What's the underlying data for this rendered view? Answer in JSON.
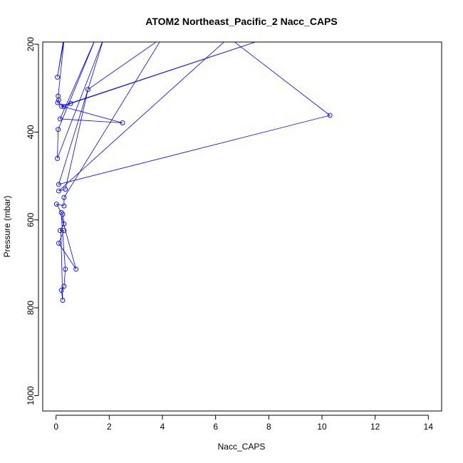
{
  "chart_data": {
    "type": "line",
    "title": "ATOM2 Northeast_Pacific_2 Nacc_CAPS",
    "xlabel": "Nacc_CAPS",
    "ylabel": "Pressure (mbar)",
    "xlim": [
      -0.5,
      14.5
    ],
    "ylim": [
      1035,
      195
    ],
    "y_reversed": true,
    "x_ticks": [
      0,
      2,
      4,
      6,
      8,
      10,
      12,
      14
    ],
    "y_ticks": [
      200,
      400,
      600,
      800,
      1000
    ],
    "grid": false,
    "series": [
      {
        "color": "#0000ff",
        "marker": "open-circle",
        "points": [
          [
            0.05,
            275
          ],
          [
            0.08,
            318
          ],
          [
            0.1,
            327
          ],
          [
            0.06,
            333
          ],
          [
            0.3,
            342
          ],
          [
            0.55,
            335
          ],
          [
            1.2,
            303
          ],
          [
            0.2,
            341
          ],
          [
            2.5,
            379
          ],
          [
            0.15,
            370
          ],
          [
            0.08,
            394
          ],
          [
            10.3,
            362
          ],
          [
            0.05,
            460
          ],
          [
            0.1,
            519
          ],
          [
            0.1,
            534
          ],
          [
            0.35,
            530
          ],
          [
            0.3,
            549
          ],
          [
            0.3,
            568
          ],
          [
            0.2,
            583
          ],
          [
            0.02,
            564
          ],
          [
            0.25,
            587
          ],
          [
            0.3,
            609
          ],
          [
            0.15,
            624
          ],
          [
            0.3,
            624
          ],
          [
            0.1,
            653
          ],
          [
            0.75,
            712
          ],
          [
            0.35,
            712
          ],
          [
            0.3,
            751
          ],
          [
            0.2,
            760
          ],
          [
            0.25,
            783
          ]
        ],
        "path": [
          [
            0.35,
            165
          ],
          [
            0.05,
            275
          ],
          [
            0.3,
            190
          ],
          [
            0.08,
            318
          ],
          [
            0.1,
            327
          ],
          [
            0.06,
            333
          ],
          [
            0.3,
            342
          ],
          [
            0.55,
            335
          ],
          [
            8.0,
            185
          ],
          [
            0.2,
            341
          ],
          [
            2.5,
            379
          ],
          [
            0.15,
            370
          ],
          [
            1.5,
            185
          ],
          [
            0.08,
            394
          ],
          [
            0.05,
            460
          ],
          [
            1.8,
            185
          ],
          [
            0.1,
            519
          ],
          [
            10.3,
            362
          ],
          [
            6.5,
            185
          ],
          [
            0.1,
            534
          ],
          [
            0.35,
            530
          ],
          [
            1.2,
            303
          ],
          [
            4.0,
            185
          ],
          [
            0.3,
            549
          ],
          [
            0.3,
            568
          ],
          [
            0.02,
            564
          ],
          [
            0.2,
            583
          ],
          [
            0.25,
            587
          ],
          [
            0.3,
            609
          ],
          [
            0.15,
            624
          ],
          [
            0.3,
            624
          ],
          [
            0.1,
            653
          ],
          [
            0.75,
            712
          ],
          [
            0.2,
            590
          ],
          [
            0.35,
            712
          ],
          [
            0.3,
            751
          ],
          [
            0.2,
            760
          ],
          [
            0.25,
            783
          ],
          [
            0.18,
            620
          ]
        ]
      }
    ]
  }
}
